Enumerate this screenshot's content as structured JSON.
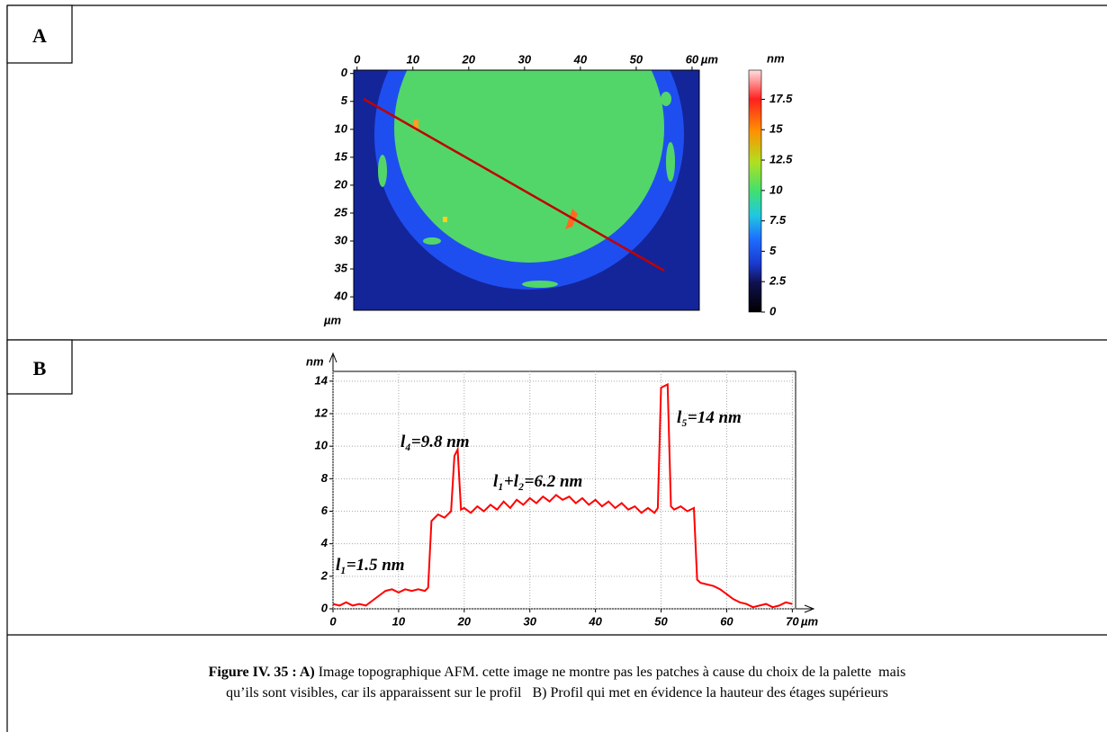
{
  "panel_a": {
    "label": "A",
    "image": {
      "xlim": [
        -0.6,
        61.3
      ],
      "ylim": [
        -0.6,
        42.4
      ],
      "xticks": [
        0,
        10,
        20,
        30,
        40,
        50,
        60
      ],
      "yticks": [
        0,
        5,
        10,
        15,
        20,
        25,
        30,
        35,
        40
      ],
      "x_unit": "µm",
      "y_unit": "µm"
    },
    "colorbar": {
      "zlim": [
        0,
        19.9
      ],
      "ticks": [
        0,
        2.5,
        5,
        7.5,
        10,
        12.5,
        15,
        17.5
      ],
      "unit": "nm"
    }
  },
  "panel_b": {
    "label": "B"
  },
  "chart_data": {
    "type": "line",
    "x_label": "µm",
    "y_label": "nm",
    "xlim": [
      0,
      70.5
    ],
    "ylim": [
      0,
      14.6
    ],
    "xticks": [
      0,
      10,
      20,
      30,
      40,
      50,
      60,
      70
    ],
    "yticks": [
      0,
      2,
      4,
      6,
      8,
      10,
      12,
      14
    ],
    "grid": true,
    "x": [
      0,
      1,
      2,
      3,
      4,
      5,
      6,
      7,
      8,
      9,
      10,
      11,
      12,
      13,
      14,
      14.5,
      15,
      16,
      17,
      18,
      18.5,
      19,
      19.5,
      20,
      21,
      22,
      23,
      24,
      25,
      26,
      27,
      28,
      29,
      30,
      31,
      32,
      33,
      34,
      35,
      36,
      37,
      38,
      39,
      40,
      41,
      42,
      43,
      44,
      45,
      46,
      47,
      48,
      49,
      49.5,
      50,
      51,
      51.5,
      52,
      53,
      54,
      55,
      55.5,
      56,
      57,
      58,
      59,
      60,
      61,
      62,
      63,
      64,
      65,
      66,
      67,
      68,
      69,
      70
    ],
    "series": [
      {
        "name": "profile",
        "color": "#ff0000",
        "values": [
          0.3,
          0.2,
          0.4,
          0.2,
          0.3,
          0.2,
          0.5,
          0.8,
          1.1,
          1.2,
          1.0,
          1.2,
          1.1,
          1.2,
          1.1,
          1.3,
          5.4,
          5.8,
          5.6,
          6.0,
          9.4,
          9.8,
          6.1,
          6.2,
          5.9,
          6.3,
          6.0,
          6.4,
          6.1,
          6.6,
          6.2,
          6.7,
          6.4,
          6.8,
          6.5,
          6.9,
          6.6,
          7.0,
          6.7,
          6.9,
          6.5,
          6.8,
          6.4,
          6.7,
          6.3,
          6.6,
          6.2,
          6.5,
          6.1,
          6.3,
          5.9,
          6.2,
          5.9,
          6.2,
          13.6,
          13.8,
          6.3,
          6.1,
          6.3,
          6.0,
          6.2,
          1.8,
          1.6,
          1.5,
          1.4,
          1.2,
          0.9,
          0.6,
          0.4,
          0.3,
          0.1,
          0.2,
          0.3,
          0.1,
          0.2,
          0.4,
          0.3
        ]
      }
    ],
    "annotations": [
      "l₁=1.5 nm",
      "l₄=9.8 nm",
      "l₁+l₂=6.2 nm",
      "l₅=14 nm"
    ]
  },
  "caption": {
    "label": "Figure IV. 35 : A)",
    "line1": "Image topographique AFM. cette image ne montre pas les patches à cause du choix de la palette  mais",
    "line2": "qu’ils sont visibles, car ils apparaissent sur le profil   B) Profil qui met en évidence la hauteur des étages supérieurs"
  }
}
